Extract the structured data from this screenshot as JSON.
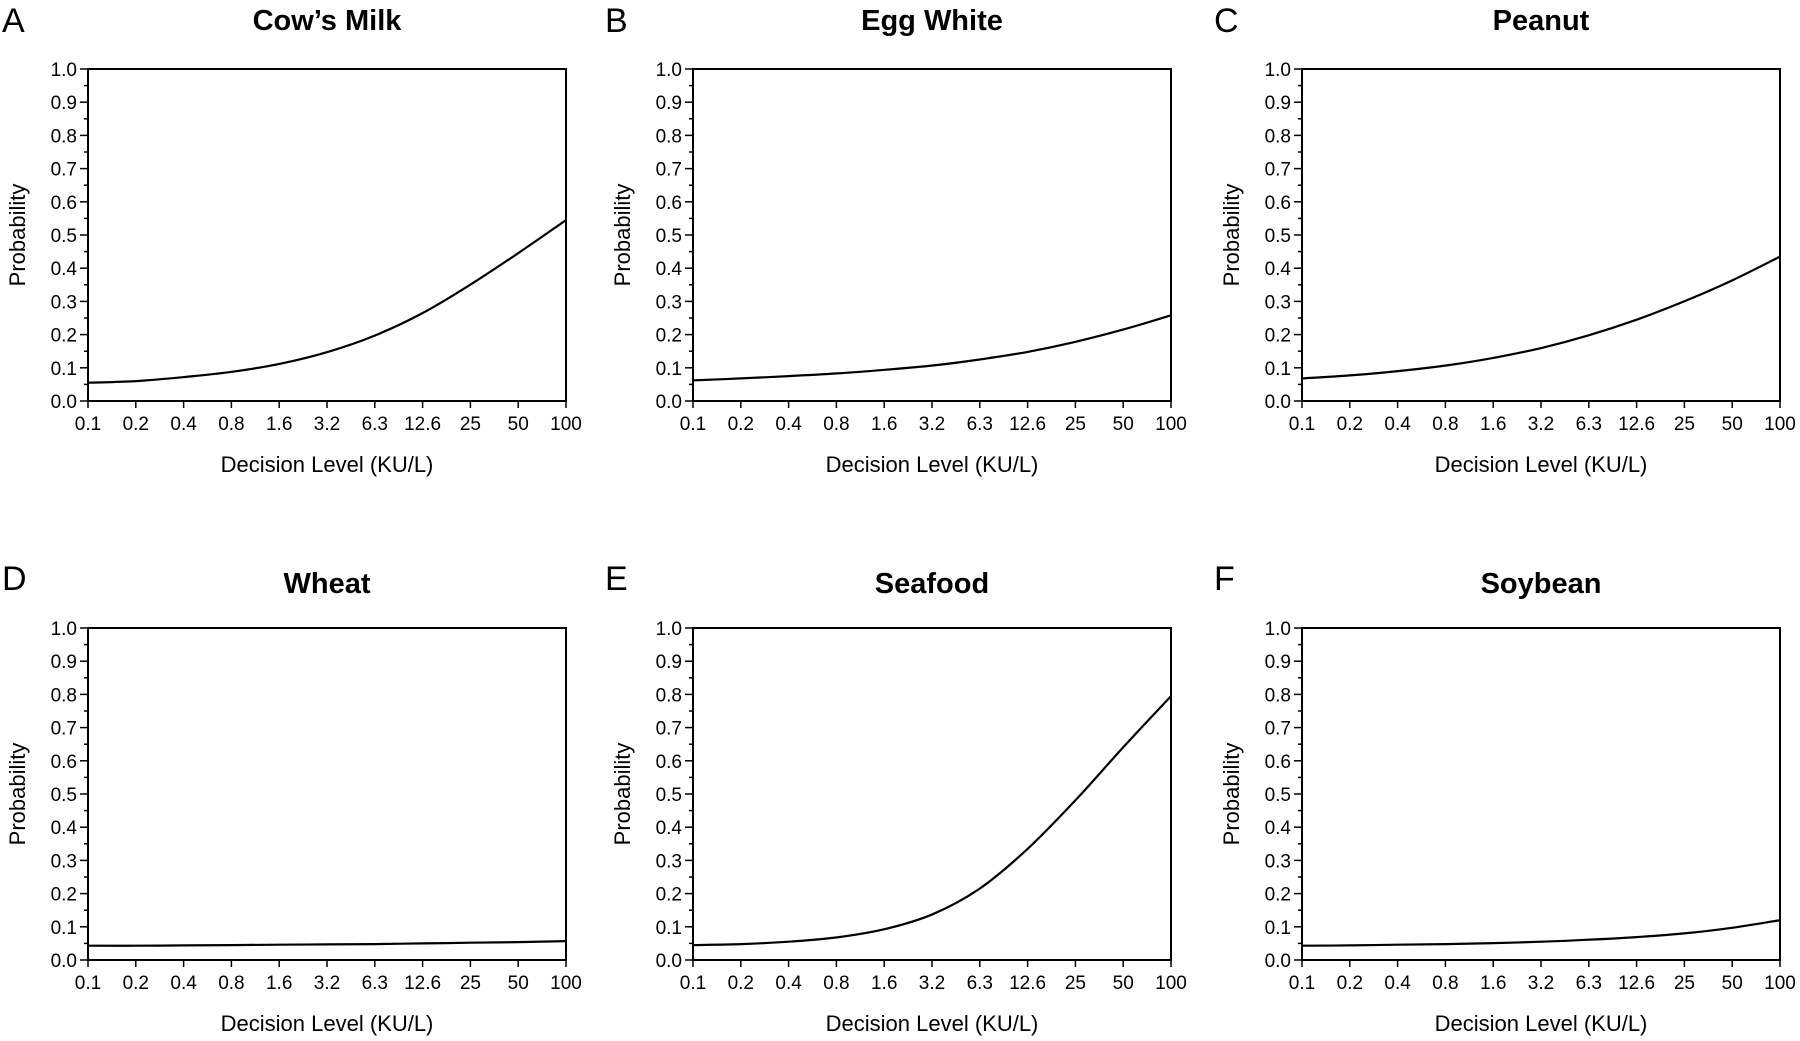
{
  "chart_data": [
    {
      "type": "line",
      "panel_label": "A",
      "title": "Cow’s Milk",
      "xlabel": "Decision Level (KU/L)",
      "ylabel": "Probability",
      "x_scale": "log",
      "x_ticks": [
        "0.1",
        "0.2",
        "0.4",
        "0.8",
        "1.6",
        "3.2",
        "6.3",
        "12.6",
        "25",
        "50",
        "100"
      ],
      "y_ticks": [
        "0.0",
        "0.1",
        "0.2",
        "0.3",
        "0.4",
        "0.5",
        "0.6",
        "0.7",
        "0.8",
        "0.9",
        "1.0"
      ],
      "ylim": [
        0,
        1
      ],
      "x": [
        0.1,
        0.2,
        0.4,
        0.8,
        1.6,
        3.2,
        6.3,
        12.6,
        25,
        50,
        100
      ],
      "y": [
        0.055,
        0.06,
        0.072,
        0.088,
        0.112,
        0.148,
        0.197,
        0.265,
        0.35,
        0.445,
        0.545
      ]
    },
    {
      "type": "line",
      "panel_label": "B",
      "title": "Egg White",
      "xlabel": "Decision Level (KU/L)",
      "ylabel": "Probability",
      "x_scale": "log",
      "x_ticks": [
        "0.1",
        "0.2",
        "0.4",
        "0.8",
        "1.6",
        "3.2",
        "6.3",
        "12.6",
        "25",
        "50",
        "100"
      ],
      "y_ticks": [
        "0.0",
        "0.1",
        "0.2",
        "0.3",
        "0.4",
        "0.5",
        "0.6",
        "0.7",
        "0.8",
        "0.9",
        "1.0"
      ],
      "ylim": [
        0,
        1
      ],
      "x": [
        0.1,
        0.2,
        0.4,
        0.8,
        1.6,
        3.2,
        6.3,
        12.6,
        25,
        50,
        100
      ],
      "y": [
        0.062,
        0.068,
        0.075,
        0.083,
        0.094,
        0.107,
        0.125,
        0.148,
        0.178,
        0.215,
        0.258
      ]
    },
    {
      "type": "line",
      "panel_label": "C",
      "title": "Peanut",
      "xlabel": "Decision Level (KU/L)",
      "ylabel": "Probability",
      "x_scale": "log",
      "x_ticks": [
        "0.1",
        "0.2",
        "0.4",
        "0.8",
        "1.6",
        "3.2",
        "6.3",
        "12.6",
        "25",
        "50",
        "100"
      ],
      "y_ticks": [
        "0.0",
        "0.1",
        "0.2",
        "0.3",
        "0.4",
        "0.5",
        "0.6",
        "0.7",
        "0.8",
        "0.9",
        "1.0"
      ],
      "ylim": [
        0,
        1
      ],
      "x": [
        0.1,
        0.2,
        0.4,
        0.8,
        1.6,
        3.2,
        6.3,
        12.6,
        25,
        50,
        100
      ],
      "y": [
        0.068,
        0.077,
        0.09,
        0.107,
        0.13,
        0.16,
        0.198,
        0.245,
        0.3,
        0.363,
        0.435
      ]
    },
    {
      "type": "line",
      "panel_label": "D",
      "title": "Wheat",
      "xlabel": "Decision Level (KU/L)",
      "ylabel": "Probability",
      "x_scale": "log",
      "x_ticks": [
        "0.1",
        "0.2",
        "0.4",
        "0.8",
        "1.6",
        "3.2",
        "6.3",
        "12.6",
        "25",
        "50",
        "100"
      ],
      "y_ticks": [
        "0.0",
        "0.1",
        "0.2",
        "0.3",
        "0.4",
        "0.5",
        "0.6",
        "0.7",
        "0.8",
        "0.9",
        "1.0"
      ],
      "ylim": [
        0,
        1
      ],
      "x": [
        0.1,
        0.2,
        0.4,
        0.8,
        1.6,
        3.2,
        6.3,
        12.6,
        25,
        50,
        100
      ],
      "y": [
        0.043,
        0.043,
        0.044,
        0.045,
        0.046,
        0.047,
        0.048,
        0.05,
        0.052,
        0.054,
        0.057
      ]
    },
    {
      "type": "line",
      "panel_label": "E",
      "title": "Seafood",
      "xlabel": "Decision Level (KU/L)",
      "ylabel": "Probability",
      "x_scale": "log",
      "x_ticks": [
        "0.1",
        "0.2",
        "0.4",
        "0.8",
        "1.6",
        "3.2",
        "6.3",
        "12.6",
        "25",
        "50",
        "100"
      ],
      "y_ticks": [
        "0.0",
        "0.1",
        "0.2",
        "0.3",
        "0.4",
        "0.5",
        "0.6",
        "0.7",
        "0.8",
        "0.9",
        "1.0"
      ],
      "ylim": [
        0,
        1
      ],
      "x": [
        0.1,
        0.2,
        0.4,
        0.8,
        1.6,
        3.2,
        6.3,
        12.6,
        25,
        50,
        100
      ],
      "y": [
        0.045,
        0.048,
        0.055,
        0.068,
        0.093,
        0.138,
        0.215,
        0.335,
        0.48,
        0.64,
        0.795
      ]
    },
    {
      "type": "line",
      "panel_label": "F",
      "title": "Soybean",
      "xlabel": "Decision Level (KU/L)",
      "ylabel": "Probability",
      "x_scale": "log",
      "x_ticks": [
        "0.1",
        "0.2",
        "0.4",
        "0.8",
        "1.6",
        "3.2",
        "6.3",
        "12.6",
        "25",
        "50",
        "100"
      ],
      "y_ticks": [
        "0.0",
        "0.1",
        "0.2",
        "0.3",
        "0.4",
        "0.5",
        "0.6",
        "0.7",
        "0.8",
        "0.9",
        "1.0"
      ],
      "ylim": [
        0,
        1
      ],
      "x": [
        0.1,
        0.2,
        0.4,
        0.8,
        1.6,
        3.2,
        6.3,
        12.6,
        25,
        50,
        100
      ],
      "y": [
        0.043,
        0.044,
        0.046,
        0.048,
        0.051,
        0.055,
        0.061,
        0.069,
        0.08,
        0.097,
        0.12
      ]
    }
  ]
}
